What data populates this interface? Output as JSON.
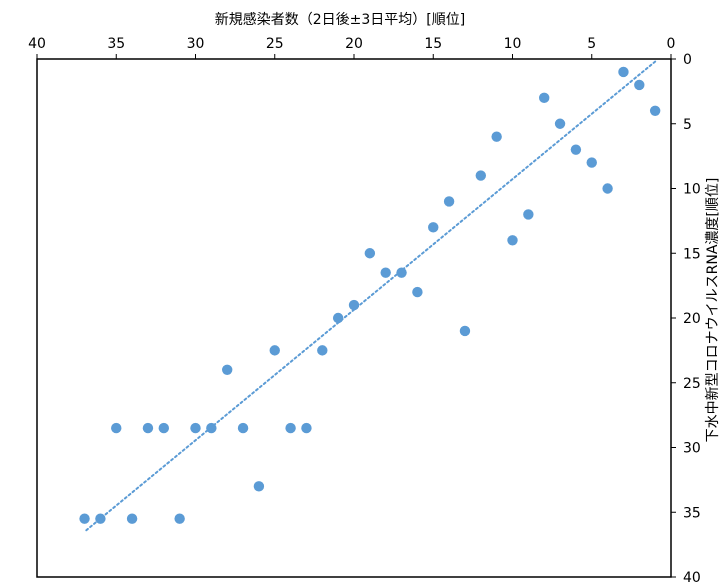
{
  "chart_data": {
    "type": "scatter",
    "title": "",
    "xlabel": "新規感染者数（2日後±3日平均）[順位]",
    "ylabel": "下水中新型コロナウイルスRNA濃度[順位]",
    "xlim": [
      40,
      0
    ],
    "ylim": [
      0,
      40
    ],
    "x_reversed": true,
    "y_reversed": true,
    "x_axis_position": "top",
    "y_axis_position": "right",
    "x_ticks": [
      40,
      35,
      30,
      25,
      20,
      15,
      10,
      5,
      0
    ],
    "y_ticks": [
      0,
      5,
      10,
      15,
      20,
      25,
      30,
      35,
      40
    ],
    "grid": false,
    "legend": "none",
    "colors": {
      "marker": "#5b9bd5",
      "trendline": "#5b9bd5",
      "axis": "#000000"
    },
    "series": [
      {
        "marker": "circle",
        "points": [
          [
            3,
            1
          ],
          [
            2,
            2
          ],
          [
            1,
            4
          ],
          [
            8,
            3
          ],
          [
            7,
            5
          ],
          [
            11,
            6
          ],
          [
            6,
            7
          ],
          [
            5,
            8
          ],
          [
            12,
            9
          ],
          [
            4,
            10
          ],
          [
            14,
            11
          ],
          [
            9,
            12
          ],
          [
            15,
            13
          ],
          [
            10,
            14
          ],
          [
            19,
            15
          ],
          [
            18,
            16.5
          ],
          [
            17,
            16.5
          ],
          [
            16,
            18
          ],
          [
            20,
            19
          ],
          [
            21,
            20
          ],
          [
            13,
            21
          ],
          [
            25,
            22.5
          ],
          [
            22,
            22.5
          ],
          [
            28,
            24
          ],
          [
            35,
            28.5
          ],
          [
            33,
            28.5
          ],
          [
            32,
            28.5
          ],
          [
            30,
            28.5
          ],
          [
            29,
            28.5
          ],
          [
            27,
            28.5
          ],
          [
            24,
            28.5
          ],
          [
            23,
            28.5
          ],
          [
            26,
            33
          ],
          [
            37,
            35.5
          ],
          [
            36,
            35.5
          ],
          [
            34,
            35.5
          ],
          [
            31,
            35.5
          ]
        ]
      }
    ],
    "trendline": {
      "type": "linear",
      "style": "dotted",
      "x": [
        1,
        37
      ],
      "y": [
        0.2,
        36.5
      ]
    }
  }
}
